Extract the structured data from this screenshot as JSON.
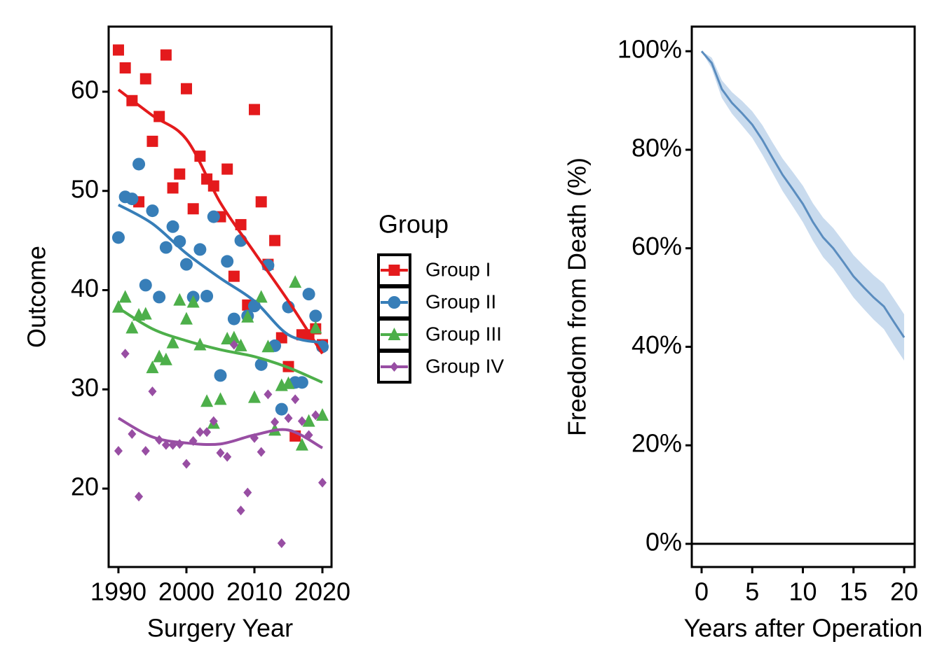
{
  "chart_data": [
    {
      "type": "scatter",
      "xlabel": "Surgery Year",
      "ylabel": "Outcome",
      "legend_title": "Group",
      "x": [
        1990,
        1991,
        1992,
        1993,
        1994,
        1995,
        1996,
        1997,
        1998,
        1999,
        2000,
        2001,
        2002,
        2003,
        2004,
        2005,
        2006,
        2007,
        2008,
        2009,
        2010,
        2011,
        2012,
        2013,
        2014,
        2015,
        2016,
        2017,
        2018,
        2019,
        2020
      ],
      "trend_x": [
        1990,
        1995,
        2000,
        2005,
        2010,
        2015,
        2020
      ],
      "xlim": [
        1988.56,
        2021.34
      ],
      "xticks": [
        1990,
        2000,
        2010,
        2020
      ],
      "ylim": [
        12.1,
        66.56
      ],
      "yticks": [
        20,
        30,
        40,
        50,
        60
      ],
      "series": [
        {
          "name": "Group I",
          "color": "#e41a1c",
          "marker": "square",
          "values": [
            64.2,
            62.4,
            59.1,
            48.9,
            61.3,
            55.0,
            57.5,
            63.7,
            50.3,
            51.7,
            60.3,
            48.2,
            53.5,
            51.2,
            50.5,
            47.4,
            52.2,
            41.4,
            46.6,
            38.5,
            58.2,
            48.9,
            42.6,
            45.0,
            35.2,
            32.3,
            25.3,
            35.5,
            35.5,
            36.1,
            34.5
          ],
          "trend": [
            60.2,
            57.6,
            55.2,
            48.8,
            43.8,
            38.9,
            33.6
          ]
        },
        {
          "name": "Group II",
          "color": "#377eb8",
          "marker": "circle",
          "values": [
            45.3,
            49.4,
            49.2,
            52.7,
            40.5,
            48.0,
            39.3,
            44.3,
            46.4,
            44.9,
            42.6,
            39.3,
            44.1,
            39.4,
            47.4,
            31.4,
            42.9,
            37.1,
            45.0,
            37.4,
            38.4,
            32.5,
            42.5,
            34.4,
            28.0,
            38.3,
            30.7,
            30.7,
            39.6,
            37.4,
            34.3
          ],
          "trend": [
            48.6,
            46.7,
            43.7,
            41.2,
            38.9,
            35.5,
            34.7
          ]
        },
        {
          "name": "Group III",
          "color": "#4daf4a",
          "marker": "triangle",
          "values": [
            38.3,
            39.3,
            36.2,
            37.5,
            37.6,
            32.2,
            33.3,
            33.0,
            34.7,
            39.0,
            37.1,
            38.8,
            34.5,
            28.8,
            26.6,
            29.0,
            35.1,
            35.2,
            34.4,
            37.3,
            29.2,
            39.3,
            34.3,
            25.9,
            30.4,
            30.6,
            40.8,
            24.4,
            26.8,
            36.2,
            27.4
          ],
          "trend": [
            38.2,
            36.1,
            34.9,
            34.0,
            33.3,
            32.2,
            30.7
          ]
        },
        {
          "name": "Group IV",
          "color": "#984ea3",
          "marker": "diamond",
          "values": [
            23.8,
            33.6,
            25.5,
            19.2,
            23.8,
            29.8,
            24.9,
            24.4,
            24.4,
            24.5,
            22.5,
            24.8,
            25.7,
            25.7,
            26.8,
            23.6,
            23.2,
            34.5,
            17.8,
            19.6,
            25.1,
            23.7,
            29.5,
            26.7,
            14.5,
            27.1,
            29.0,
            26.8,
            25.4,
            27.4,
            20.6
          ],
          "trend": [
            27.1,
            25.2,
            24.6,
            24.5,
            25.4,
            25.9,
            24.1
          ]
        }
      ]
    },
    {
      "type": "line",
      "xlabel": "Years after Operation",
      "ylabel": "Freedom from Death (%)",
      "x": [
        0,
        1,
        2,
        3,
        4,
        5,
        6,
        7,
        8,
        9,
        10,
        11,
        12,
        13,
        14,
        15,
        16,
        17,
        18,
        19,
        20
      ],
      "xlim": [
        -0.97,
        21.04
      ],
      "xticks": [
        0,
        5,
        10,
        15,
        20
      ],
      "ylim": [
        -4.7,
        105.0
      ],
      "yticks": [
        {
          "value": 0,
          "label": "0%"
        },
        {
          "value": 20,
          "label": "20%"
        },
        {
          "value": 40,
          "label": "40%"
        },
        {
          "value": 60,
          "label": "60%"
        },
        {
          "value": 80,
          "label": "80%"
        },
        {
          "value": 100,
          "label": "100%"
        }
      ],
      "hline": 0,
      "series": [
        {
          "color": "#5b8dbf",
          "band_color": "#c9dbee",
          "values": [
            100,
            97.6,
            92.3,
            89.5,
            87.4,
            85.1,
            82.0,
            78.4,
            74.9,
            72.0,
            69.0,
            65.3,
            62.2,
            60.0,
            57.2,
            54.3,
            52.1,
            50.0,
            48.2,
            45.0,
            41.9
          ],
          "lower": [
            100,
            96.5,
            90.5,
            87.3,
            84.9,
            82.4,
            79.0,
            75.3,
            71.6,
            68.5,
            65.3,
            61.5,
            58.2,
            55.9,
            53.0,
            50.0,
            47.7,
            45.5,
            43.6,
            40.3,
            37.2
          ],
          "upper": [
            100,
            98.7,
            94.1,
            91.7,
            89.9,
            87.8,
            85.0,
            81.5,
            78.2,
            75.5,
            72.7,
            69.1,
            66.2,
            64.1,
            61.4,
            58.6,
            56.5,
            54.5,
            52.8,
            49.7,
            46.6
          ]
        }
      ]
    }
  ]
}
